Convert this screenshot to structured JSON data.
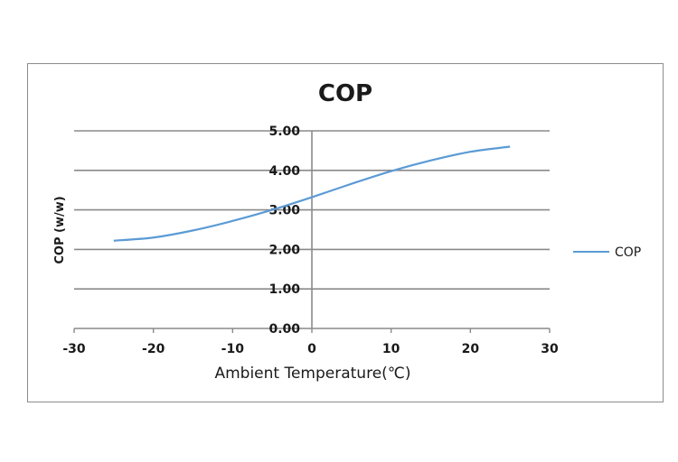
{
  "chart_data": {
    "type": "line",
    "title": "COP",
    "xlabel": "Ambient Temperature(℃)",
    "ylabel": "COP (w/w)",
    "xlim": [
      -30,
      30
    ],
    "ylim": [
      0,
      5
    ],
    "x_ticks": [
      "-30",
      "-20",
      "-10",
      "0",
      "10",
      "20",
      "30"
    ],
    "y_ticks": [
      "0.00",
      "1.00",
      "2.00",
      "3.00",
      "4.00",
      "5.00"
    ],
    "grid": "horizontal",
    "legend_position": "right",
    "series": [
      {
        "name": "COP",
        "color": "#5b9bd5",
        "x": [
          -25,
          -20,
          -15,
          -10,
          -5,
          0,
          5,
          10,
          15,
          20,
          25
        ],
        "y": [
          2.22,
          2.3,
          2.48,
          2.72,
          3.0,
          3.32,
          3.66,
          3.98,
          4.25,
          4.47,
          4.6
        ]
      }
    ]
  }
}
